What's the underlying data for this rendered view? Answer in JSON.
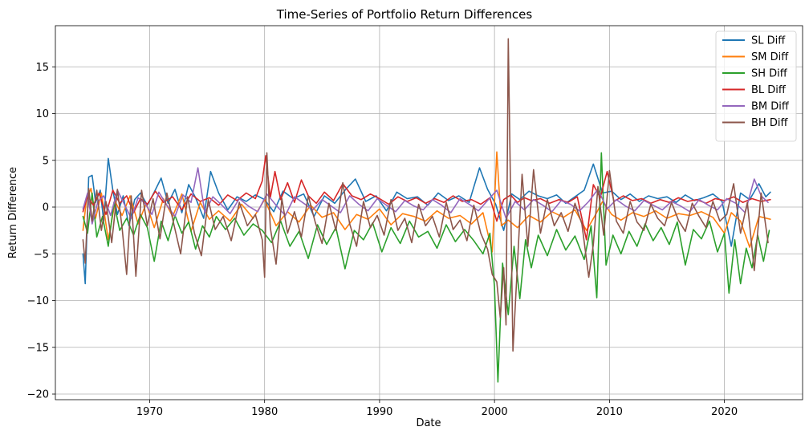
{
  "chart_data": {
    "type": "line",
    "title": "Time-Series of Portfolio Return Differences",
    "xlabel": "Date",
    "ylabel": "Return Difference",
    "xlim": [
      1961.8,
      2026.8
    ],
    "ylim": [
      -20.6,
      19.4
    ],
    "xticks": [
      1970,
      1980,
      1990,
      2000,
      2010,
      2020
    ],
    "yticks": [
      -20,
      -15,
      -10,
      -5,
      0,
      5,
      10,
      15
    ],
    "grid": true,
    "legend_position": "top-right",
    "series": [
      {
        "name": "SL Diff",
        "color": "#1f77b4",
        "x": [
          1964.2,
          1964.4,
          1964.7,
          1965.0,
          1965.3,
          1965.7,
          1966.0,
          1966.4,
          1966.8,
          1967.2,
          1967.7,
          1968.2,
          1968.7,
          1969.2,
          1969.8,
          1970.4,
          1971.0,
          1971.6,
          1972.2,
          1972.8,
          1973.4,
          1974.0,
          1974.7,
          1975.3,
          1976.0,
          1976.8,
          1977.6,
          1978.4,
          1979.2,
          1980.0,
          1980.8,
          1981.6,
          1982.5,
          1983.4,
          1984.3,
          1985.2,
          1986.1,
          1987.0,
          1987.9,
          1988.8,
          1989.7,
          1990.6,
          1991.5,
          1992.4,
          1993.3,
          1994.2,
          1995.1,
          1996.0,
          1996.9,
          1997.8,
          1998.7,
          1999.4,
          2000.1,
          2000.8,
          2001.5,
          2002.2,
          2003.0,
          2003.8,
          2004.6,
          2005.4,
          2006.2,
          2007.0,
          2007.8,
          2008.6,
          2009.4,
          2010.2,
          2011.0,
          2011.8,
          2012.6,
          2013.4,
          2014.2,
          2015.0,
          2015.8,
          2016.6,
          2017.4,
          2018.2,
          2019.0,
          2019.8,
          2020.6,
          2021.4,
          2022.2,
          2023.0,
          2023.6,
          2024.0
        ],
        "values": [
          -5.0,
          -8.2,
          3.2,
          3.4,
          0.5,
          1.8,
          -1.5,
          5.2,
          1.8,
          -0.8,
          1.2,
          -2.0,
          0.8,
          1.5,
          0.2,
          1.6,
          3.1,
          0.4,
          1.9,
          -0.6,
          2.4,
          1.0,
          -1.2,
          3.8,
          1.5,
          -0.3,
          1.1,
          0.6,
          1.3,
          0.8,
          -0.5,
          1.7,
          0.9,
          1.4,
          -1.0,
          1.2,
          0.4,
          1.8,
          3.0,
          0.6,
          1.2,
          -0.4,
          1.6,
          0.9,
          1.1,
          0.2,
          1.5,
          0.7,
          1.2,
          0.5,
          4.2,
          1.9,
          0.3,
          -2.5,
          1.4,
          0.8,
          1.7,
          1.2,
          0.9,
          1.3,
          0.4,
          1.1,
          1.8,
          4.6,
          1.5,
          1.7,
          0.8,
          1.4,
          0.6,
          1.2,
          0.9,
          1.1,
          0.5,
          1.3,
          0.7,
          1.0,
          1.4,
          0.6,
          -4.2,
          1.5,
          0.8,
          2.5,
          1.1,
          1.6
        ]
      },
      {
        "name": "SM Diff",
        "color": "#ff7f0e",
        "x": [
          1964.2,
          1964.5,
          1964.9,
          1965.3,
          1965.8,
          1966.4,
          1967.0,
          1967.6,
          1968.3,
          1969.0,
          1969.7,
          1970.4,
          1971.2,
          1972.0,
          1972.8,
          1973.6,
          1974.4,
          1975.2,
          1976.0,
          1977.0,
          1978.0,
          1979.0,
          1980.0,
          1981.0,
          1982.0,
          1983.0,
          1984.0,
          1985.0,
          1986.0,
          1987.0,
          1988.0,
          1989.0,
          1990.0,
          1991.0,
          1992.0,
          1993.0,
          1994.0,
          1995.0,
          1996.0,
          1997.0,
          1998.0,
          1999.0,
          1999.8,
          2000.2,
          2000.6,
          2001.2,
          2002.0,
          2003.0,
          2004.0,
          2005.0,
          2006.0,
          2007.0,
          2008.0,
          2008.7,
          2009.4,
          2010.2,
          2011.0,
          2012.0,
          2013.0,
          2014.0,
          2015.0,
          2016.0,
          2017.0,
          2018.0,
          2019.0,
          2020.0,
          2020.6,
          2021.4,
          2022.2,
          2023.0,
          2024.0
        ],
        "values": [
          -2.5,
          0.8,
          2.0,
          -1.2,
          1.5,
          -3.5,
          0.6,
          -0.9,
          1.2,
          -1.8,
          0.4,
          -2.2,
          0.9,
          -1.0,
          1.4,
          -2.6,
          0.5,
          -1.3,
          -0.4,
          -1.5,
          0.3,
          -1.2,
          0.8,
          -2.0,
          -0.5,
          -1.6,
          0.2,
          -1.1,
          -0.6,
          -2.4,
          -0.8,
          -1.3,
          -0.2,
          -1.9,
          -0.7,
          -1.0,
          -1.5,
          -0.4,
          -1.2,
          -0.9,
          -1.8,
          -0.6,
          -4.8,
          5.9,
          -2.0,
          -1.4,
          -2.2,
          -0.9,
          -1.6,
          -0.5,
          -1.1,
          -0.3,
          -2.5,
          -1.0,
          0.6,
          -0.8,
          -1.4,
          -0.6,
          -1.0,
          -0.4,
          -1.2,
          -0.7,
          -0.9,
          -0.5,
          -1.1,
          -2.8,
          -0.6,
          -1.5,
          -4.3,
          -1.0,
          -1.3
        ]
      },
      {
        "name": "SH Diff",
        "color": "#2ca02c",
        "x": [
          1964.2,
          1964.6,
          1965.0,
          1965.4,
          1965.9,
          1966.4,
          1966.9,
          1967.4,
          1968.0,
          1968.6,
          1969.2,
          1969.8,
          1970.4,
          1971.0,
          1971.6,
          1972.2,
          1972.8,
          1973.4,
          1974.0,
          1974.6,
          1975.2,
          1975.8,
          1976.6,
          1977.4,
          1978.2,
          1979.0,
          1979.8,
          1980.6,
          1981.4,
          1982.2,
          1983.0,
          1983.8,
          1984.6,
          1985.4,
          1986.2,
          1987.0,
          1987.8,
          1988.6,
          1989.4,
          1990.2,
          1991.0,
          1991.8,
          1992.6,
          1993.4,
          1994.2,
          1995.0,
          1995.8,
          1996.6,
          1997.4,
          1998.2,
          1999.0,
          1999.6,
          2000.0,
          2000.3,
          2000.7,
          2001.2,
          2001.7,
          2002.2,
          2002.7,
          2003.2,
          2003.8,
          2004.6,
          2005.4,
          2006.2,
          2007.0,
          2007.8,
          2008.4,
          2008.9,
          2009.3,
          2009.7,
          2010.3,
          2011.0,
          2011.7,
          2012.4,
          2013.1,
          2013.8,
          2014.5,
          2015.2,
          2015.9,
          2016.6,
          2017.3,
          2018.0,
          2018.7,
          2019.4,
          2020.0,
          2020.4,
          2020.9,
          2021.4,
          2021.9,
          2022.4,
          2022.9,
          2023.4,
          2023.9
        ],
        "values": [
          -1.0,
          -2.8,
          1.5,
          -3.2,
          -1.0,
          -4.2,
          0.5,
          -2.5,
          -1.2,
          -3.0,
          -0.8,
          -2.2,
          -5.8,
          -1.5,
          -3.6,
          -0.9,
          -2.8,
          -1.6,
          -4.5,
          -2.0,
          -3.2,
          -1.0,
          -2.4,
          -1.2,
          -3.0,
          -1.8,
          -2.5,
          -3.8,
          -1.5,
          -4.2,
          -2.6,
          -5.5,
          -1.9,
          -4.0,
          -2.2,
          -6.6,
          -2.5,
          -3.5,
          -1.7,
          -4.8,
          -2.2,
          -3.9,
          -1.5,
          -3.2,
          -2.6,
          -4.4,
          -1.9,
          -3.7,
          -2.4,
          -3.6,
          -5.0,
          -2.8,
          -8.5,
          -18.7,
          -6.0,
          -11.5,
          -4.2,
          -9.8,
          -3.5,
          -6.5,
          -3.0,
          -5.2,
          -2.4,
          -4.6,
          -3.1,
          -5.6,
          -2.0,
          -9.7,
          5.8,
          -6.2,
          -3.0,
          -5.0,
          -2.6,
          -4.2,
          -1.8,
          -3.6,
          -2.2,
          -4.0,
          -1.6,
          -6.2,
          -2.4,
          -3.4,
          -1.5,
          -4.8,
          -2.8,
          -9.2,
          -3.5,
          -8.2,
          -4.4,
          -6.5,
          -3.0,
          -5.8,
          -2.5
        ]
      },
      {
        "name": "BL Diff",
        "color": "#d62728",
        "x": [
          1964.2,
          1964.6,
          1965.1,
          1965.6,
          1966.2,
          1966.8,
          1967.4,
          1968.0,
          1968.6,
          1969.2,
          1969.8,
          1970.5,
          1971.2,
          1972.0,
          1972.8,
          1973.6,
          1974.4,
          1975.2,
          1976.0,
          1976.8,
          1977.6,
          1978.4,
          1979.2,
          1979.8,
          1980.1,
          1980.5,
          1980.9,
          1981.4,
          1982.0,
          1982.6,
          1983.2,
          1983.8,
          1984.5,
          1985.2,
          1986.0,
          1986.8,
          1987.6,
          1988.4,
          1989.2,
          1990.0,
          1990.8,
          1991.6,
          1992.4,
          1993.2,
          1994.0,
          1994.8,
          1995.6,
          1996.4,
          1997.2,
          1998.0,
          1998.8,
          1999.6,
          2000.2,
          2000.8,
          2001.4,
          2002.0,
          2002.6,
          2003.2,
          2004.0,
          2004.8,
          2005.6,
          2006.4,
          2007.2,
          2008.0,
          2008.6,
          2009.2,
          2009.8,
          2010.4,
          2011.2,
          2012.0,
          2012.8,
          2013.6,
          2014.4,
          2015.2,
          2016.0,
          2016.8,
          2017.6,
          2018.4,
          2019.2,
          2020.0,
          2020.8,
          2021.6,
          2022.4,
          2023.2,
          2024.0
        ],
        "values": [
          -0.5,
          1.2,
          0.2,
          1.5,
          -0.8,
          1.8,
          0.4,
          1.2,
          -0.6,
          0.9,
          0.3,
          1.7,
          0.5,
          1.1,
          -0.3,
          1.4,
          0.6,
          1.0,
          0.2,
          1.3,
          0.7,
          1.5,
          0.9,
          2.8,
          5.5,
          1.0,
          3.8,
          0.8,
          2.6,
          0.5,
          2.9,
          1.2,
          0.4,
          1.6,
          0.7,
          2.5,
          1.2,
          0.8,
          1.4,
          0.9,
          0.3,
          1.1,
          0.6,
          1.0,
          0.4,
          0.9,
          0.5,
          1.2,
          0.6,
          0.8,
          0.3,
          1.0,
          -1.5,
          0.8,
          1.3,
          0.5,
          1.0,
          0.7,
          0.9,
          0.4,
          0.8,
          0.5,
          1.1,
          -3.5,
          2.4,
          1.0,
          3.8,
          0.6,
          1.2,
          0.7,
          0.9,
          0.4,
          0.8,
          0.5,
          1.0,
          0.6,
          0.8,
          0.4,
          0.9,
          0.7,
          1.1,
          0.5,
          0.9,
          0.6,
          0.8
        ]
      },
      {
        "name": "BM Diff",
        "color": "#9467bd",
        "x": [
          1964.2,
          1964.6,
          1965.0,
          1965.5,
          1966.0,
          1966.6,
          1967.2,
          1967.8,
          1968.4,
          1969.0,
          1969.6,
          1970.2,
          1970.8,
          1971.5,
          1972.2,
          1972.9,
          1973.6,
          1974.2,
          1974.8,
          1975.5,
          1976.2,
          1977.0,
          1977.8,
          1978.6,
          1979.4,
          1980.2,
          1981.0,
          1981.8,
          1982.6,
          1983.4,
          1984.2,
          1985.0,
          1985.8,
          1986.6,
          1987.4,
          1988.2,
          1989.0,
          1989.8,
          1990.6,
          1991.4,
          1992.2,
          1993.0,
          1993.8,
          1994.6,
          1995.4,
          1996.2,
          1997.0,
          1997.8,
          1998.6,
          1999.4,
          2000.2,
          2001.0,
          2001.8,
          2002.6,
          2003.4,
          2004.2,
          2005.0,
          2005.8,
          2006.6,
          2007.4,
          2008.2,
          2009.0,
          2009.8,
          2010.6,
          2011.4,
          2012.2,
          2013.0,
          2013.8,
          2014.6,
          2015.4,
          2016.2,
          2017.0,
          2017.8,
          2018.6,
          2019.4,
          2020.2,
          2021.0,
          2021.8,
          2022.6,
          2023.2,
          2023.8
        ],
        "values": [
          -0.2,
          1.5,
          -1.8,
          0.6,
          1.2,
          -0.9,
          1.8,
          0.3,
          -1.2,
          1.0,
          0.4,
          -0.8,
          1.6,
          0.2,
          -1.0,
          1.3,
          0.5,
          4.2,
          -0.6,
          1.1,
          0.3,
          -0.7,
          0.9,
          0.1,
          -0.5,
          1.4,
          0.2,
          -0.9,
          1.1,
          0.4,
          -0.3,
          0.8,
          0.1,
          -0.6,
          1.2,
          0.3,
          -0.4,
          0.9,
          0.2,
          -0.5,
          0.7,
          0.1,
          -0.3,
          0.8,
          0.2,
          -0.6,
          0.9,
          0.3,
          -0.4,
          0.7,
          1.8,
          -1.2,
          0.6,
          -0.3,
          0.8,
          0.2,
          -0.5,
          0.7,
          0.3,
          -0.4,
          0.6,
          1.9,
          -0.2,
          0.8,
          0.1,
          -0.4,
          0.7,
          0.2,
          -0.3,
          0.6,
          0.1,
          -0.5,
          0.8,
          0.2,
          -0.3,
          0.9,
          0.4,
          -0.6,
          3.0,
          1.2,
          0.5
        ]
      },
      {
        "name": "BH Diff",
        "color": "#8c564b",
        "x": [
          1964.2,
          1964.4,
          1964.7,
          1965.0,
          1965.4,
          1965.8,
          1966.2,
          1966.7,
          1967.2,
          1967.6,
          1968.0,
          1968.4,
          1968.8,
          1969.3,
          1969.8,
          1970.3,
          1970.9,
          1971.5,
          1972.1,
          1972.7,
          1973.3,
          1973.9,
          1974.5,
          1975.1,
          1975.7,
          1976.4,
          1977.1,
          1977.8,
          1978.5,
          1979.2,
          1979.8,
          1980.0,
          1980.2,
          1980.5,
          1981.0,
          1981.5,
          1982.0,
          1982.6,
          1983.2,
          1983.8,
          1984.4,
          1985.0,
          1985.6,
          1986.2,
          1986.8,
          1987.4,
          1988.0,
          1988.6,
          1989.2,
          1989.8,
          1990.4,
          1991.0,
          1991.6,
          1992.2,
          1992.8,
          1993.4,
          1994.0,
          1994.6,
          1995.2,
          1995.8,
          1996.4,
          1997.0,
          1997.6,
          1998.2,
          1998.8,
          1999.4,
          1999.8,
          2000.2,
          2000.5,
          2000.8,
          2001.0,
          2001.2,
          2001.6,
          2002.0,
          2002.4,
          2002.9,
          2003.4,
          2004.0,
          2004.6,
          2005.2,
          2005.8,
          2006.4,
          2007.0,
          2007.6,
          2008.2,
          2008.6,
          2009.0,
          2009.5,
          2010.0,
          2010.6,
          2011.2,
          2011.8,
          2012.4,
          2013.0,
          2013.6,
          2014.2,
          2014.8,
          2015.4,
          2016.0,
          2016.6,
          2017.2,
          2017.8,
          2018.4,
          2019.0,
          2019.6,
          2020.2,
          2020.8,
          2021.4,
          2022.0,
          2022.6,
          2023.2,
          2023.8
        ],
        "values": [
          -3.5,
          -6.0,
          2.0,
          -1.5,
          1.8,
          -2.5,
          0.6,
          -3.8,
          1.9,
          -2.2,
          -7.2,
          1.2,
          -7.4,
          1.8,
          -2.0,
          0.9,
          -3.4,
          1.5,
          -1.8,
          -5.0,
          1.1,
          -2.8,
          -5.2,
          0.8,
          -2.4,
          -1.0,
          -3.6,
          0.5,
          -2.0,
          -0.8,
          -3.5,
          -7.5,
          5.8,
          -2.2,
          -6.1,
          0.9,
          -2.8,
          -0.5,
          -3.2,
          1.2,
          -1.6,
          -3.9,
          0.4,
          -2.5,
          2.6,
          -1.8,
          -4.2,
          0.6,
          -2.2,
          -0.9,
          -3.0,
          0.8,
          -2.5,
          -1.2,
          -3.8,
          0.3,
          -2.0,
          -1.0,
          -3.2,
          0.5,
          -2.4,
          -1.4,
          -3.6,
          0.2,
          -2.8,
          -4.5,
          -7.2,
          -8.0,
          -11.8,
          -6.5,
          -12.6,
          18.0,
          -15.4,
          -6.0,
          3.5,
          -4.2,
          4.0,
          -2.8,
          0.8,
          -2.0,
          -0.6,
          -2.6,
          0.4,
          -1.8,
          -7.5,
          -4.0,
          2.2,
          -3.0,
          3.9,
          -1.5,
          -2.8,
          0.6,
          -1.6,
          -2.5,
          0.3,
          -1.2,
          -2.0,
          0.5,
          -1.4,
          -2.6,
          0.4,
          -1.0,
          -2.2,
          0.6,
          -1.5,
          -0.8,
          2.5,
          -2.8,
          0.5,
          -6.8,
          1.5,
          -3.8
        ]
      }
    ]
  }
}
